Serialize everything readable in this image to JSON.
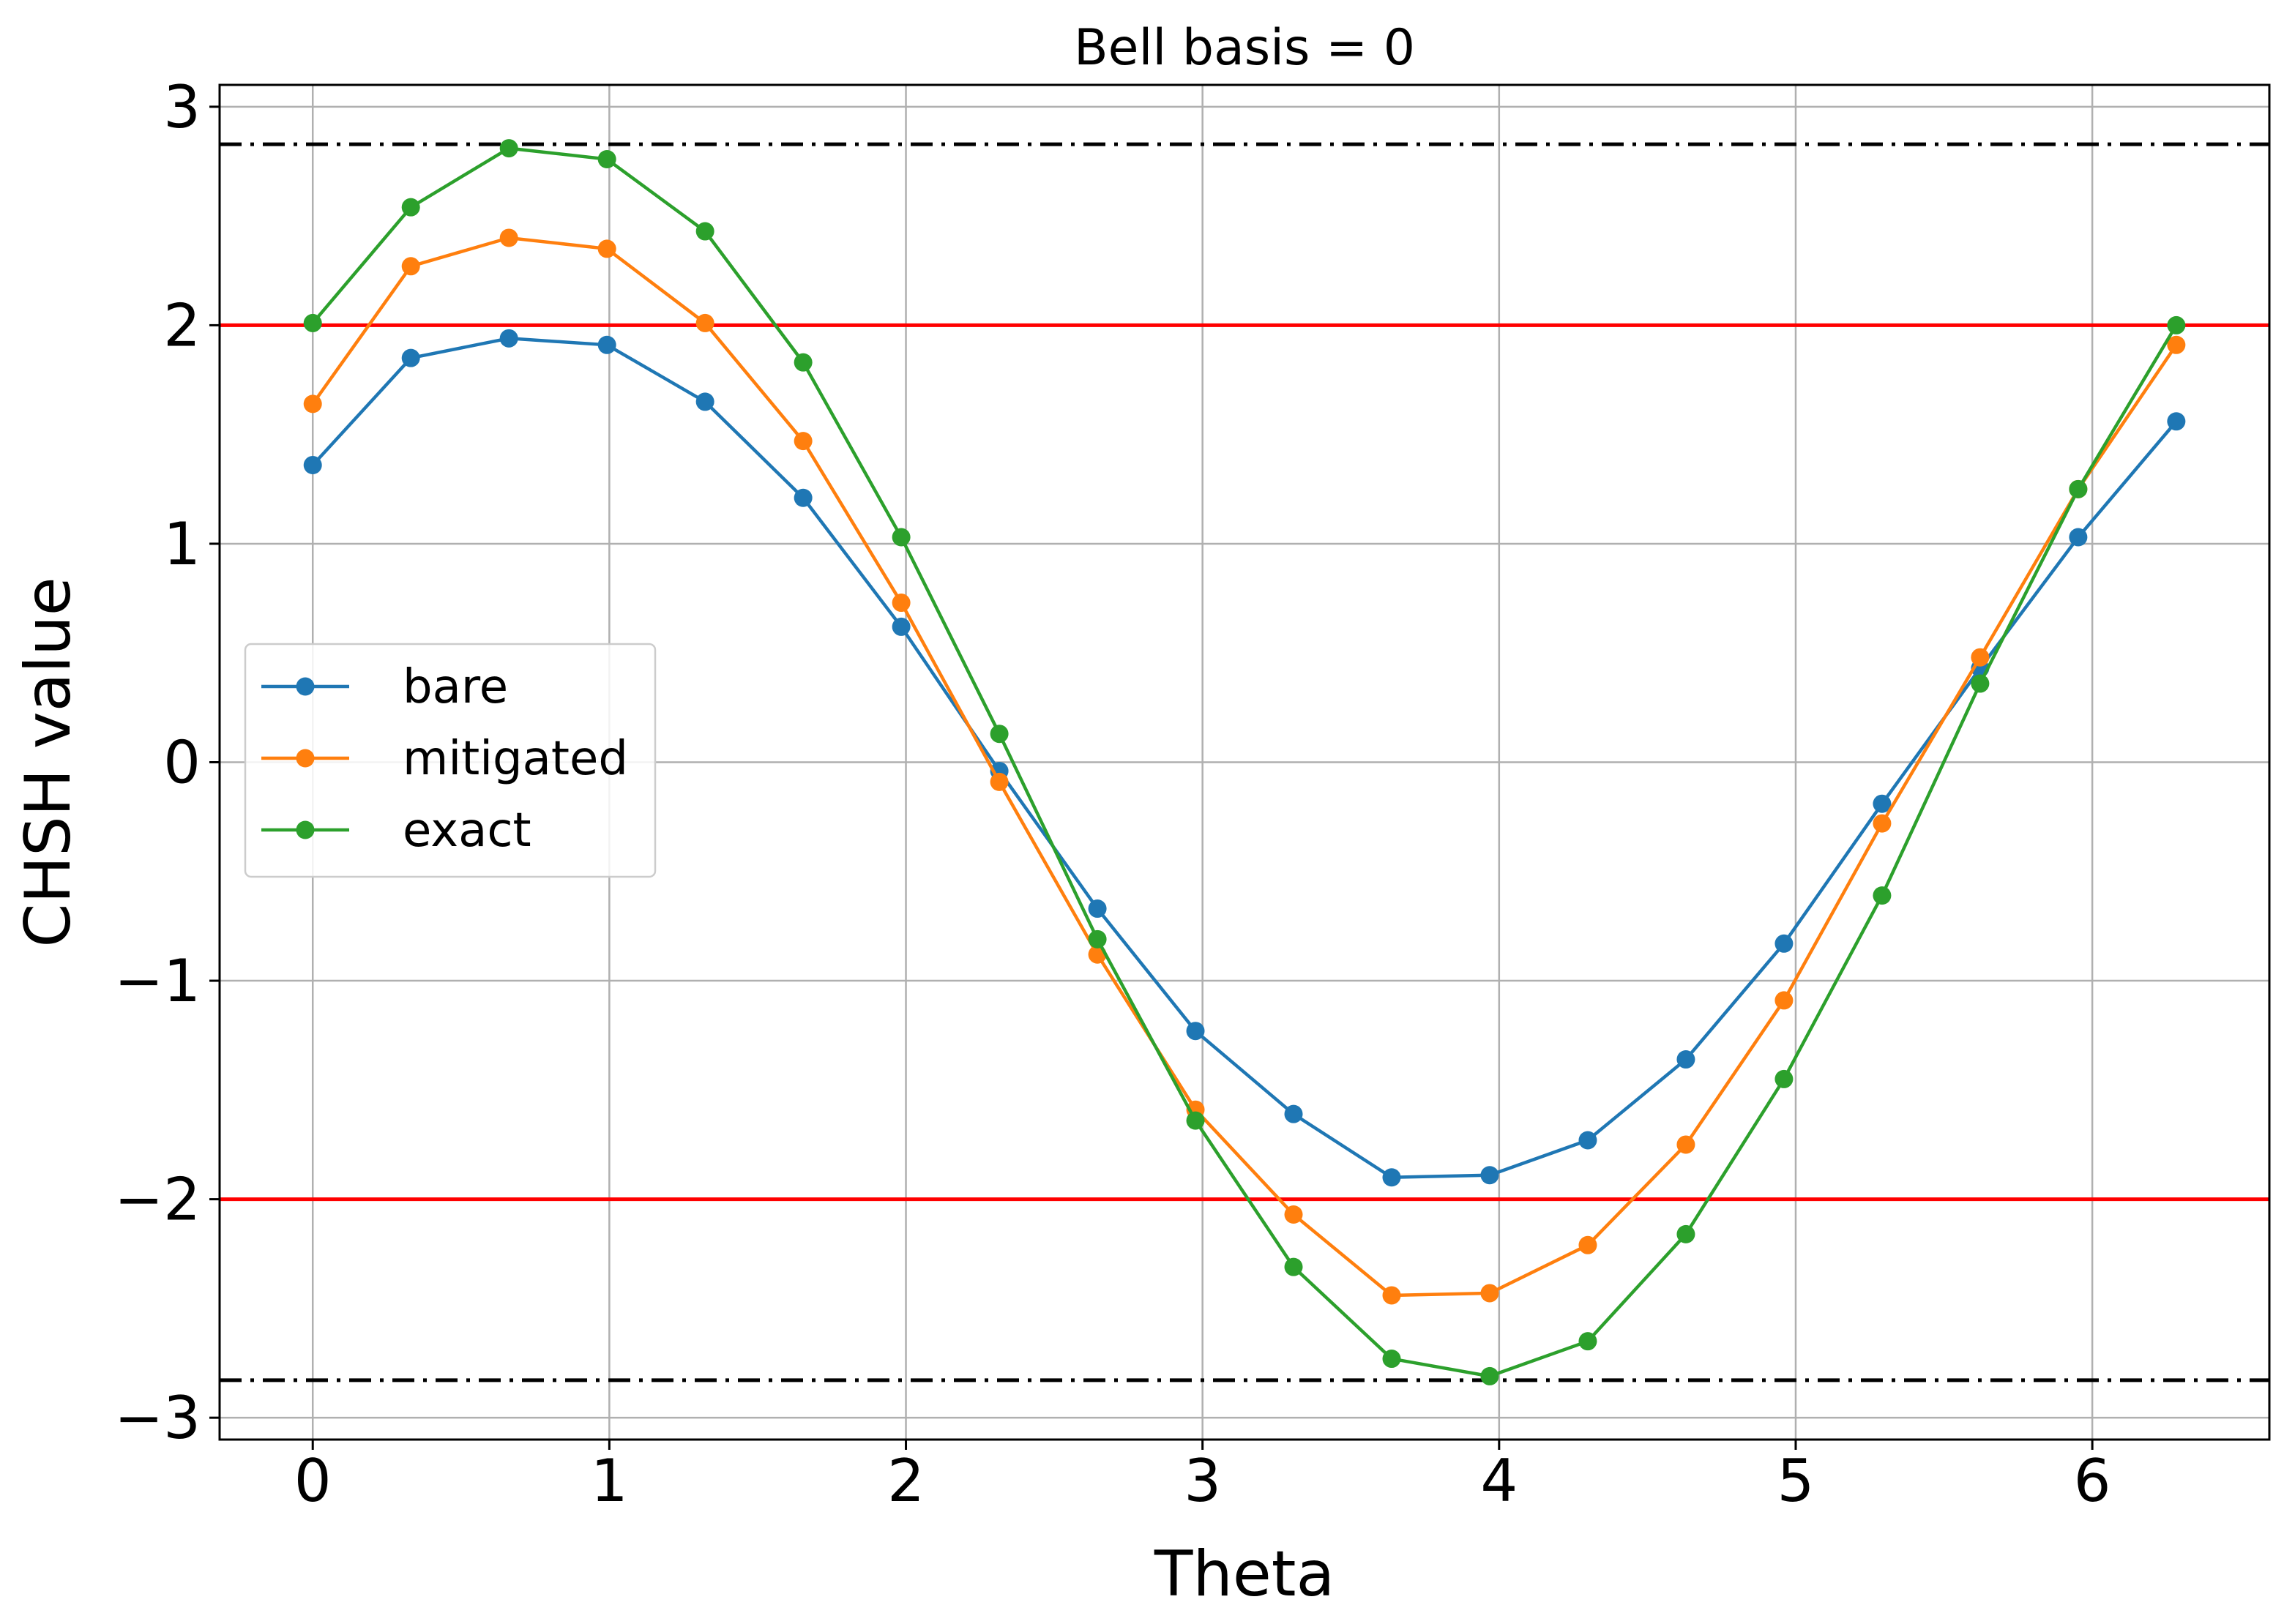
{
  "chart_data": {
    "type": "line",
    "title": "Bell basis = 0",
    "xlabel": "Theta",
    "ylabel": "CHSH value",
    "xlim": [
      -0.314,
      6.597
    ],
    "ylim": [
      -3.1,
      3.1
    ],
    "xticks": [
      0,
      1,
      2,
      3,
      4,
      5,
      6
    ],
    "xtick_labels": [
      "0",
      "1",
      "2",
      "3",
      "4",
      "5",
      "6"
    ],
    "yticks": [
      -3,
      -2,
      -1,
      0,
      1,
      2,
      3
    ],
    "ytick_labels": [
      "−3",
      "−2",
      "−1",
      "0",
      "1",
      "2",
      "3"
    ],
    "grid": true,
    "legend_position": "center-left",
    "x": [
      0,
      0.3307,
      0.6614,
      0.9921,
      1.3228,
      1.6535,
      1.9842,
      2.3149,
      2.6456,
      2.9762,
      3.3069,
      3.6376,
      3.9683,
      4.299,
      4.6297,
      4.9604,
      5.2911,
      5.6218,
      5.9525,
      6.2832
    ],
    "series": [
      {
        "name": "bare",
        "color": "#1f77b4",
        "values": [
          1.36,
          1.85,
          1.94,
          1.91,
          1.65,
          1.21,
          0.62,
          -0.04,
          -0.67,
          -1.23,
          -1.61,
          -1.9,
          -1.89,
          -1.73,
          -1.36,
          -0.83,
          -0.19,
          0.43,
          1.03,
          1.56
        ]
      },
      {
        "name": "mitigated",
        "color": "#ff7f0e",
        "values": [
          1.64,
          2.27,
          2.4,
          2.35,
          2.01,
          1.47,
          0.73,
          -0.09,
          -0.88,
          -1.59,
          -2.07,
          -2.44,
          -2.43,
          -2.21,
          -1.75,
          -1.09,
          -0.28,
          0.48,
          1.25,
          1.91
        ]
      },
      {
        "name": "exact",
        "color": "#2ca02c",
        "values": [
          2.01,
          2.54,
          2.81,
          2.76,
          2.43,
          1.83,
          1.03,
          0.13,
          -0.81,
          -1.64,
          -2.31,
          -2.73,
          -2.81,
          -2.65,
          -2.16,
          -1.45,
          -0.61,
          0.36,
          1.25,
          2.0
        ]
      }
    ],
    "reference_lines": [
      {
        "y": 2,
        "color": "#ff0000",
        "style": "solid"
      },
      {
        "y": -2,
        "color": "#ff0000",
        "style": "solid"
      },
      {
        "y": 2.8284,
        "color": "#000000",
        "style": "dashdot"
      },
      {
        "y": -2.8284,
        "color": "#000000",
        "style": "dashdot"
      }
    ]
  }
}
